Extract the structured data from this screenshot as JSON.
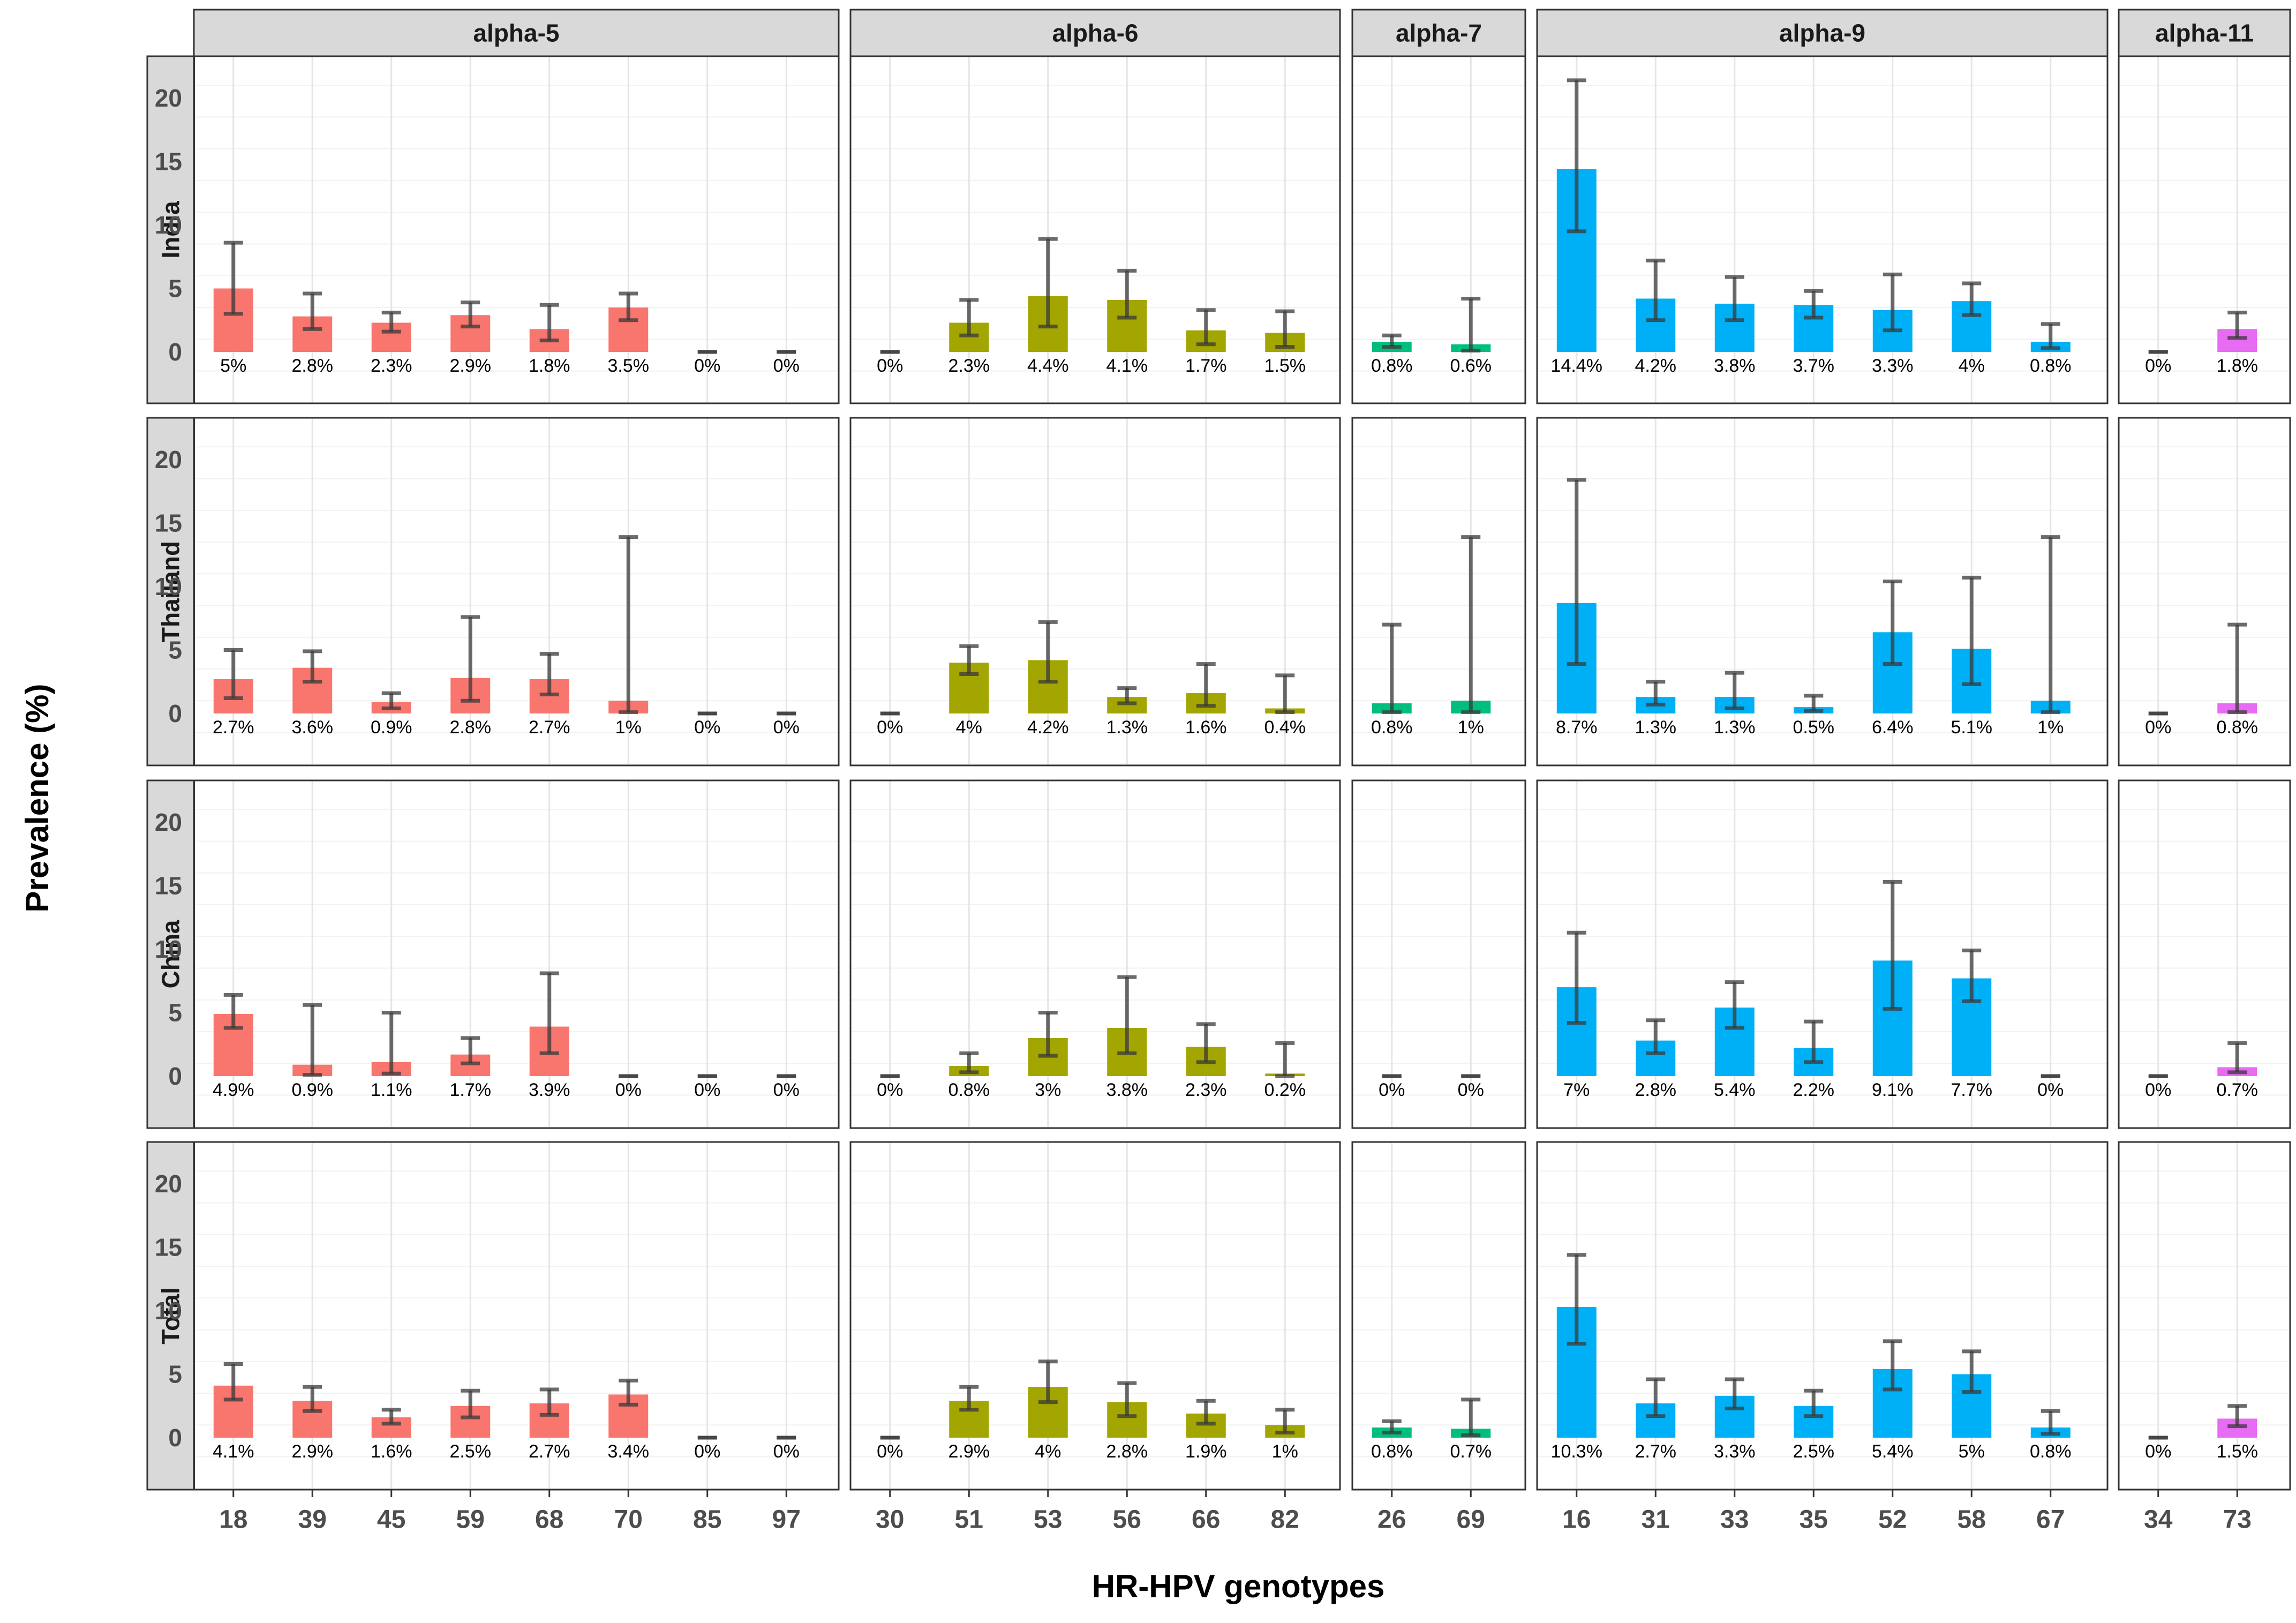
{
  "chart_data": {
    "type": "bar",
    "title": "",
    "xlabel": "HR-HPV genotypes",
    "ylabel": "Prevalence (%)",
    "ylim": [
      -4,
      23
    ],
    "yticks": [
      0,
      5,
      10,
      15,
      20
    ],
    "grid": true,
    "facet_columns": [
      {
        "name": "alpha-5",
        "color": "#F8766D",
        "genotypes": [
          "18",
          "39",
          "45",
          "59",
          "68",
          "70",
          "85",
          "97"
        ]
      },
      {
        "name": "alpha-6",
        "color": "#A3A500",
        "genotypes": [
          "30",
          "51",
          "53",
          "56",
          "66",
          "82"
        ]
      },
      {
        "name": "alpha-7",
        "color": "#00BF7D",
        "genotypes": [
          "26",
          "69"
        ]
      },
      {
        "name": "alpha-9",
        "color": "#00B0F6",
        "genotypes": [
          "16",
          "31",
          "33",
          "35",
          "52",
          "58",
          "67"
        ]
      },
      {
        "name": "alpha-11",
        "color": "#E76BF3",
        "genotypes": [
          "34",
          "73"
        ]
      }
    ],
    "facet_rows": [
      {
        "name": "India",
        "groups": [
          {
            "values": [
              5,
              2.8,
              2.3,
              2.9,
              1.8,
              3.5,
              0,
              0
            ],
            "labels": [
              "5%",
              "2.8%",
              "2.3%",
              "2.9%",
              "1.8%",
              "3.5%",
              "0%",
              "0%"
            ],
            "ci_low": [
              3.0,
              1.8,
              1.6,
              2.0,
              0.9,
              2.5,
              0,
              0
            ],
            "ci_high": [
              8.6,
              4.6,
              3.1,
              3.9,
              3.7,
              4.6,
              0,
              0
            ]
          },
          {
            "values": [
              0,
              2.3,
              4.4,
              4.1,
              1.7,
              1.5
            ],
            "labels": [
              "0%",
              "2.3%",
              "4.4%",
              "4.1%",
              "1.7%",
              "1.5%"
            ],
            "ci_low": [
              0,
              1.3,
              2.0,
              2.7,
              0.6,
              0.4
            ],
            "ci_high": [
              0,
              4.1,
              8.9,
              6.4,
              3.3,
              3.2
            ]
          },
          {
            "values": [
              0.8,
              0.6
            ],
            "labels": [
              "0.8%",
              "0.6%"
            ],
            "ci_low": [
              0.4,
              0.1
            ],
            "ci_high": [
              1.3,
              4.2
            ]
          },
          {
            "values": [
              14.4,
              4.2,
              3.8,
              3.7,
              3.3,
              4,
              0.8
            ],
            "labels": [
              "14.4%",
              "4.2%",
              "3.8%",
              "3.7%",
              "3.3%",
              "4%",
              "0.8%"
            ],
            "ci_low": [
              9.5,
              2.5,
              2.5,
              2.7,
              1.7,
              2.9,
              0.3
            ],
            "ci_high": [
              21.4,
              7.2,
              5.9,
              4.8,
              6.1,
              5.4,
              2.2
            ]
          },
          {
            "values": [
              0,
              1.8
            ],
            "labels": [
              "0%",
              "1.8%"
            ],
            "ci_low": [
              0,
              1.1
            ],
            "ci_high": [
              0,
              3.1
            ]
          }
        ]
      },
      {
        "name": "Thailand",
        "groups": [
          {
            "values": [
              2.7,
              3.6,
              0.9,
              2.8,
              2.7,
              1,
              0,
              0
            ],
            "labels": [
              "2.7%",
              "3.6%",
              "0.9%",
              "2.8%",
              "2.7%",
              "1%",
              "0%",
              "0%"
            ],
            "ci_low": [
              1.2,
              2.5,
              0.4,
              1.0,
              1.5,
              0.1,
              0,
              0
            ],
            "ci_high": [
              5.0,
              4.9,
              1.6,
              7.6,
              4.7,
              13.9,
              0,
              0
            ]
          },
          {
            "values": [
              0,
              4,
              4.2,
              1.3,
              1.6,
              0.4
            ],
            "labels": [
              "0%",
              "4%",
              "4.2%",
              "1.3%",
              "1.6%",
              "0.4%"
            ],
            "ci_low": [
              0,
              3.1,
              2.5,
              0.8,
              0.6,
              0.1
            ],
            "ci_high": [
              0,
              5.3,
              7.2,
              2.0,
              3.9,
              3.0
            ]
          },
          {
            "values": [
              0.8,
              1
            ],
            "labels": [
              "0.8%",
              "1%"
            ],
            "ci_low": [
              0.1,
              0.1
            ],
            "ci_high": [
              7.0,
              13.9
            ]
          },
          {
            "values": [
              8.7,
              1.3,
              1.3,
              0.5,
              6.4,
              5.1,
              1
            ],
            "labels": [
              "8.7%",
              "1.3%",
              "1.3%",
              "0.5%",
              "6.4%",
              "5.1%",
              "1%"
            ],
            "ci_low": [
              3.9,
              0.7,
              0.4,
              0.2,
              3.9,
              2.3,
              0.1
            ],
            "ci_high": [
              18.4,
              2.5,
              3.2,
              1.4,
              10.4,
              10.7,
              13.9
            ]
          },
          {
            "values": [
              0,
              0.8
            ],
            "labels": [
              "0%",
              "0.8%"
            ],
            "ci_low": [
              0,
              0.1
            ],
            "ci_high": [
              0,
              7.0
            ]
          }
        ]
      },
      {
        "name": "China",
        "groups": [
          {
            "values": [
              4.9,
              0.9,
              1.1,
              1.7,
              3.9,
              0,
              0,
              0
            ],
            "labels": [
              "4.9%",
              "0.9%",
              "1.1%",
              "1.7%",
              "3.9%",
              "0%",
              "0%",
              "0%"
            ],
            "ci_low": [
              3.8,
              0.1,
              0.2,
              1.0,
              1.8,
              0,
              0,
              0
            ],
            "ci_high": [
              6.4,
              5.6,
              5.0,
              3.0,
              8.1,
              0,
              0,
              0
            ]
          },
          {
            "values": [
              0,
              0.8,
              3,
              3.8,
              2.3,
              0.2
            ],
            "labels": [
              "0%",
              "0.8%",
              "3%",
              "3.8%",
              "2.3%",
              "0.2%"
            ],
            "ci_low": [
              0,
              0.3,
              1.6,
              1.8,
              1.1,
              0.0
            ],
            "ci_high": [
              0,
              1.8,
              5.0,
              7.8,
              4.1,
              2.6
            ]
          },
          {
            "values": [
              0,
              0
            ],
            "labels": [
              "0%",
              "0%"
            ],
            "ci_low": [
              0,
              0
            ],
            "ci_high": [
              0,
              0
            ]
          },
          {
            "values": [
              7,
              2.8,
              5.4,
              2.2,
              9.1,
              7.7,
              0
            ],
            "labels": [
              "7%",
              "2.8%",
              "5.4%",
              "2.2%",
              "9.1%",
              "7.7%",
              "0%"
            ],
            "ci_low": [
              4.2,
              1.8,
              3.8,
              1.1,
              5.3,
              5.9,
              0
            ],
            "ci_high": [
              11.3,
              4.4,
              7.4,
              4.3,
              15.3,
              9.9,
              0
            ]
          },
          {
            "values": [
              0,
              0.7
            ],
            "labels": [
              "0%",
              "0.7%"
            ],
            "ci_low": [
              0,
              0.3
            ],
            "ci_high": [
              0,
              2.6
            ]
          }
        ]
      },
      {
        "name": "Total",
        "groups": [
          {
            "values": [
              4.1,
              2.9,
              1.6,
              2.5,
              2.7,
              3.4,
              0,
              0
            ],
            "labels": [
              "4.1%",
              "2.9%",
              "1.6%",
              "2.5%",
              "2.7%",
              "3.4%",
              "0%",
              "0%"
            ],
            "ci_low": [
              3.0,
              2.1,
              1.1,
              1.6,
              1.8,
              2.6,
              0,
              0
            ],
            "ci_high": [
              5.8,
              4.0,
              2.2,
              3.7,
              3.8,
              4.5,
              0,
              0
            ]
          },
          {
            "values": [
              0,
              2.9,
              4,
              2.8,
              1.9,
              1
            ],
            "labels": [
              "0%",
              "2.9%",
              "4%",
              "2.8%",
              "1.9%",
              "1%"
            ],
            "ci_low": [
              0,
              2.2,
              2.8,
              1.7,
              1.1,
              0.4
            ],
            "ci_high": [
              0,
              4.0,
              6.0,
              4.3,
              2.9,
              2.2
            ]
          },
          {
            "values": [
              0.8,
              0.7
            ],
            "labels": [
              "0.8%",
              "0.7%"
            ],
            "ci_low": [
              0.4,
              0.2
            ],
            "ci_high": [
              1.3,
              3.0
            ]
          },
          {
            "values": [
              10.3,
              2.7,
              3.3,
              2.5,
              5.4,
              5,
              0.8
            ],
            "labels": [
              "10.3%",
              "2.7%",
              "3.3%",
              "2.5%",
              "5.4%",
              "5%",
              "0.8%"
            ],
            "ci_low": [
              7.4,
              1.7,
              2.3,
              1.7,
              3.8,
              3.6,
              0.3
            ],
            "ci_high": [
              14.4,
              4.6,
              4.6,
              3.7,
              7.6,
              6.8,
              2.1
            ]
          },
          {
            "values": [
              0,
              1.5
            ],
            "labels": [
              "0%",
              "1.5%"
            ],
            "ci_low": [
              0,
              0.9
            ],
            "ci_high": [
              0,
              2.5
            ]
          }
        ]
      }
    ]
  }
}
